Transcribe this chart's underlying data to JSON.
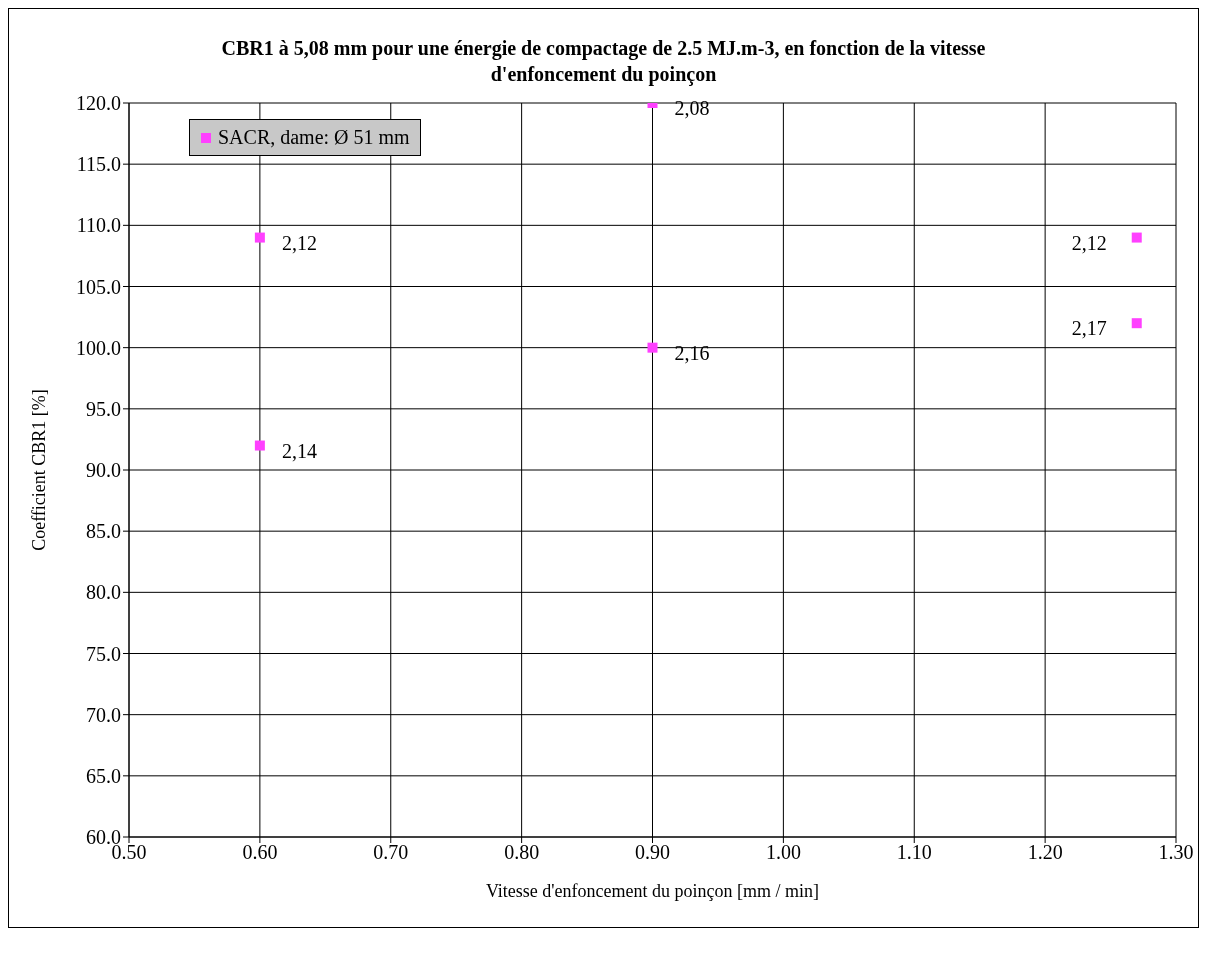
{
  "chart_data": {
    "type": "scatter",
    "title": "CBR1 à 5,08 mm pour une énergie de compactage de 2.5 MJ.m-3, en fonction de la vitesse d'enfoncement du poinçon",
    "xlabel": "Vitesse d'enfoncement du poinçon  [mm / min]",
    "ylabel": "Coefficient CBR1 [%]",
    "series": [
      {
        "name": "SACR, dame:  Ø 51 mm",
        "color": "#ff40ff",
        "x": [
          0.6,
          0.6,
          0.9,
          0.9,
          1.27,
          1.27
        ],
        "values": [
          109,
          92,
          120,
          100,
          109,
          102
        ]
      }
    ],
    "annotations": [
      {
        "text": "2,12",
        "x": 0.6,
        "y": 109
      },
      {
        "text": "2,14",
        "x": 0.6,
        "y": 92
      },
      {
        "text": "2,08",
        "x": 0.9,
        "y": 120
      },
      {
        "text": "2,16",
        "x": 0.9,
        "y": 100
      },
      {
        "text": "2,12",
        "x": 1.27,
        "y": 109
      },
      {
        "text": "2,17",
        "x": 1.27,
        "y": 102
      }
    ],
    "xlim": [
      0.5,
      1.3
    ],
    "xticks": [
      {
        "value": 0.5,
        "label": "0.50"
      },
      {
        "value": 0.6,
        "label": "0.60"
      },
      {
        "value": 0.7,
        "label": "0.70"
      },
      {
        "value": 0.8,
        "label": "0.80"
      },
      {
        "value": 0.9,
        "label": "0.90"
      },
      {
        "value": 1.0,
        "label": "1.00"
      },
      {
        "value": 1.1,
        "label": "1.10"
      },
      {
        "value": 1.2,
        "label": "1.20"
      },
      {
        "value": 1.3,
        "label": "1.30"
      }
    ],
    "ylim": [
      60,
      120
    ],
    "yticks": [
      {
        "value": 60,
        "label": "60.0"
      },
      {
        "value": 65,
        "label": "65.0"
      },
      {
        "value": 70,
        "label": "70.0"
      },
      {
        "value": 75,
        "label": "75.0"
      },
      {
        "value": 80,
        "label": "80.0"
      },
      {
        "value": 85,
        "label": "85.0"
      },
      {
        "value": 90,
        "label": "90.0"
      },
      {
        "value": 95,
        "label": "95.0"
      },
      {
        "value": 100,
        "label": "100.0"
      },
      {
        "value": 105,
        "label": "105.0"
      },
      {
        "value": 110,
        "label": "110.0"
      },
      {
        "value": 115,
        "label": "115.0"
      },
      {
        "value": 120,
        "label": "120.0"
      }
    ],
    "grid": true,
    "legend": "top left",
    "marker": "square"
  }
}
